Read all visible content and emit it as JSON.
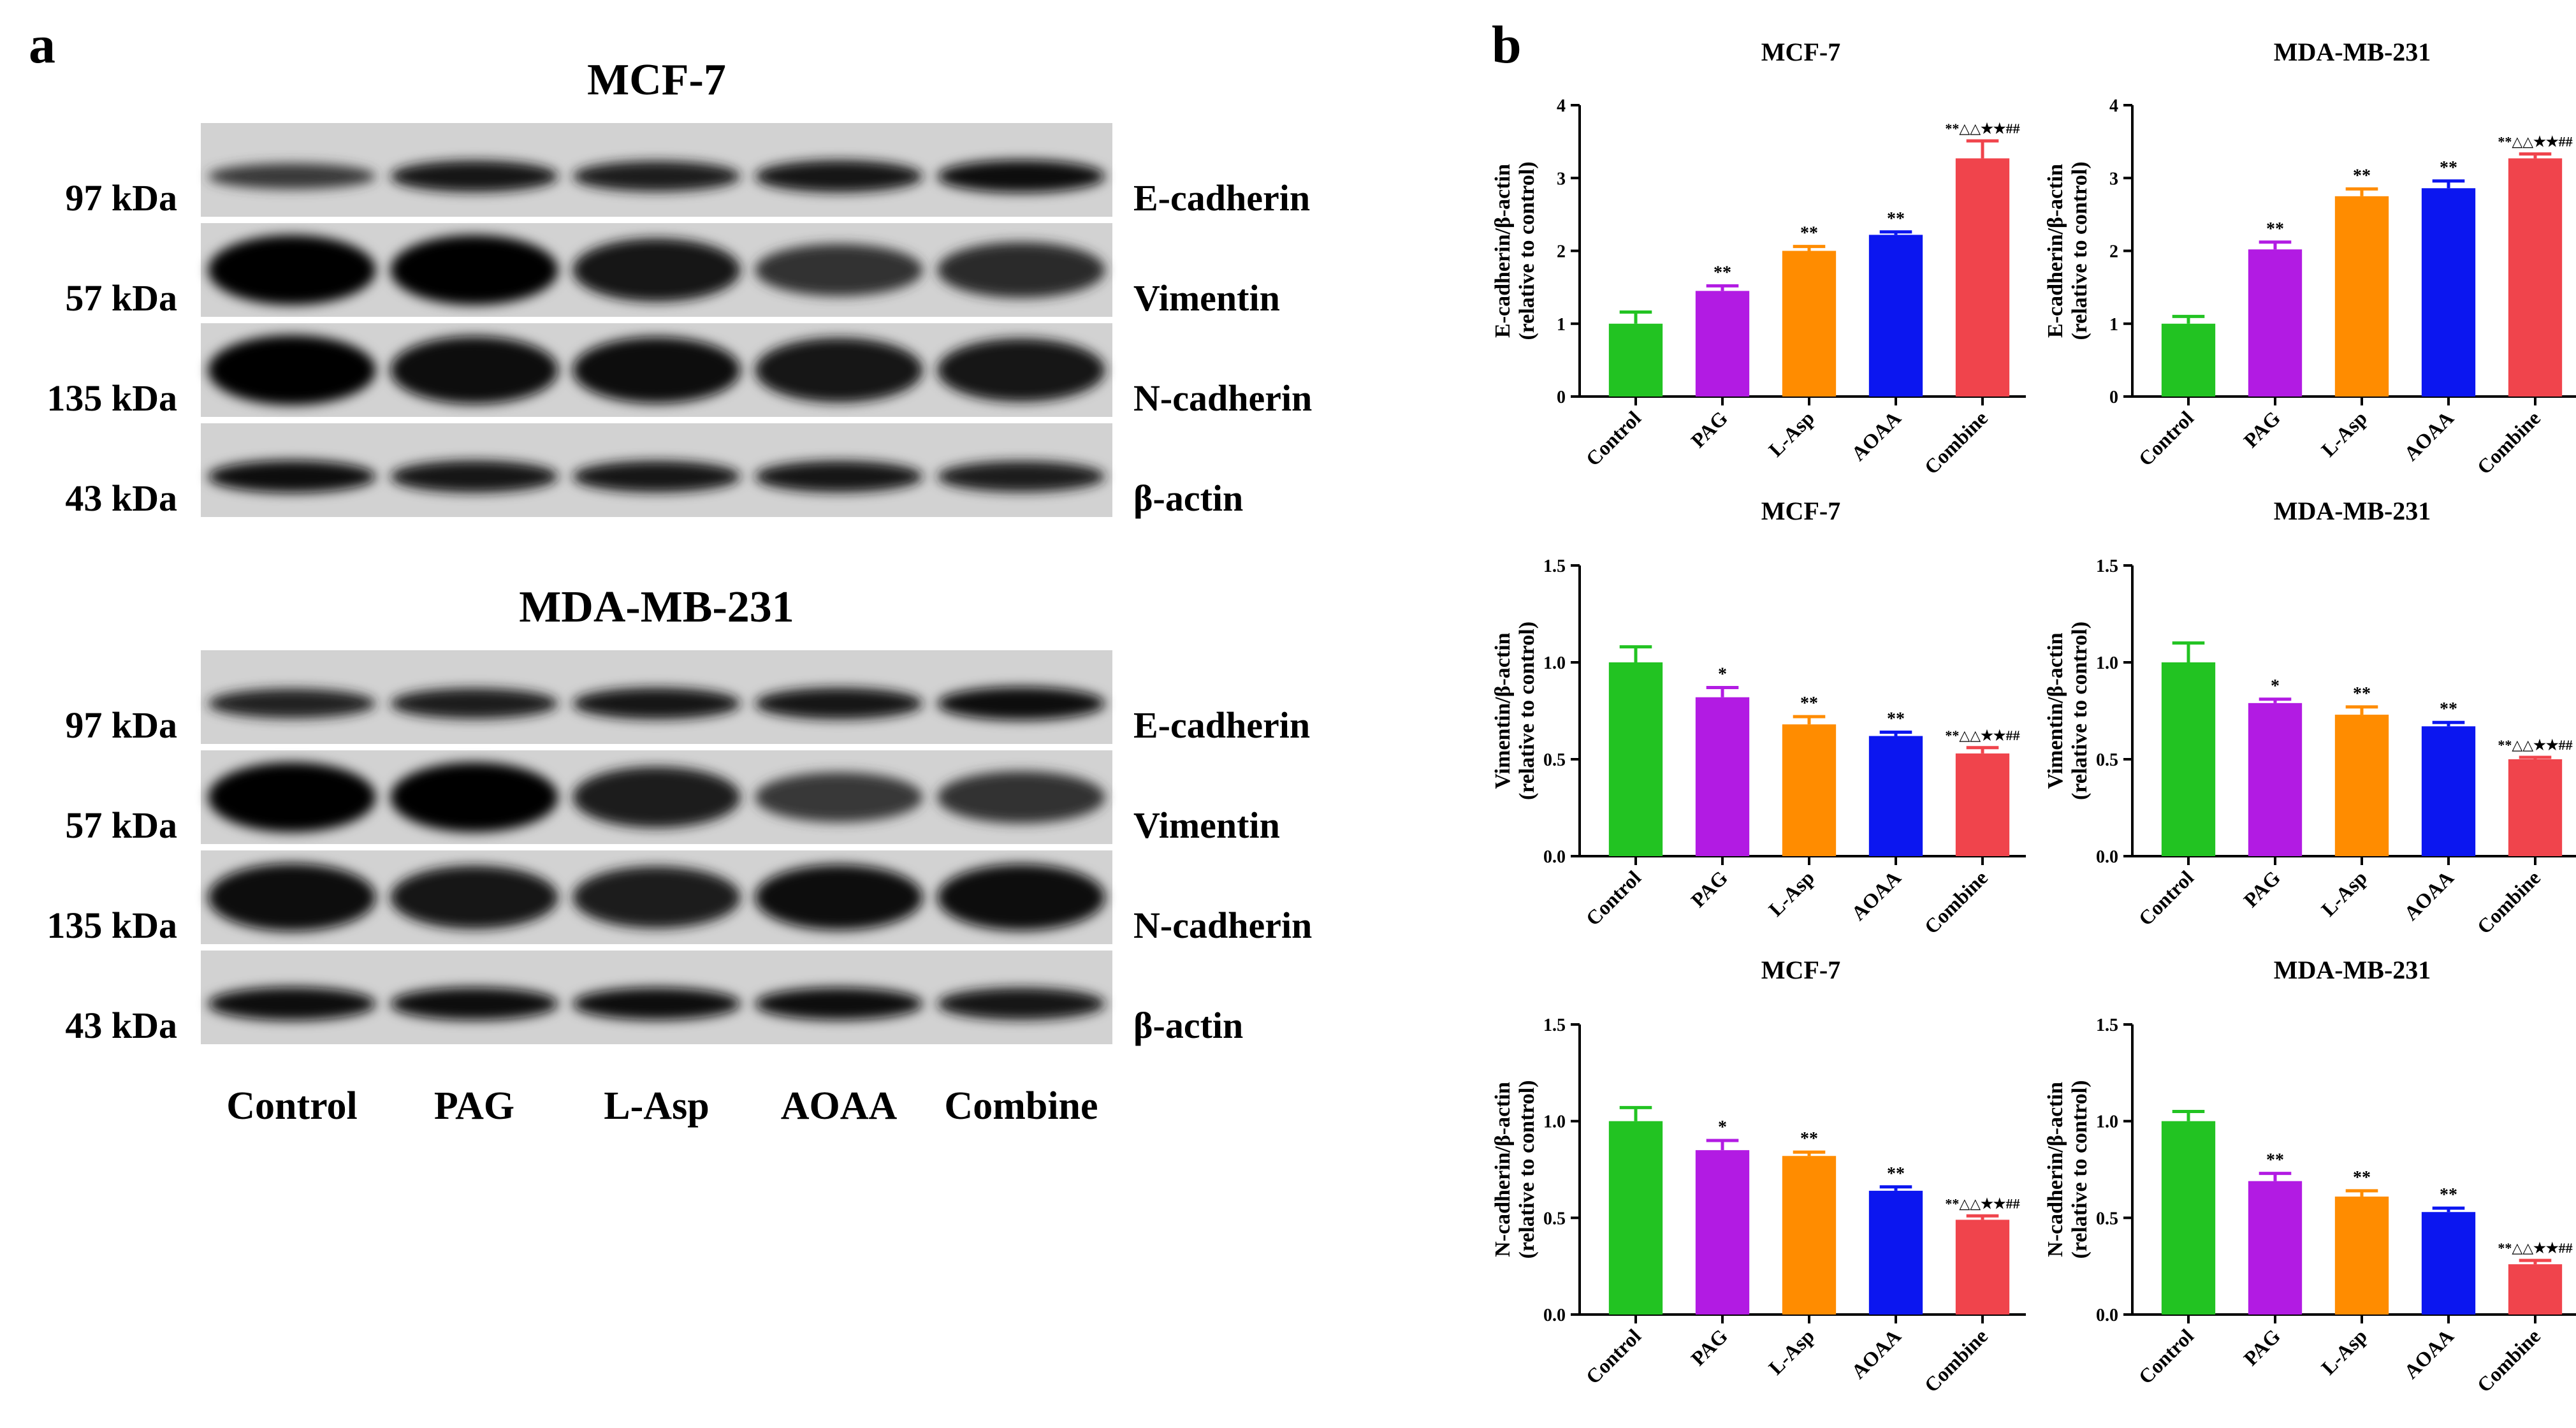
{
  "panel_a": {
    "label": "a",
    "blots": [
      {
        "title": "MCF-7",
        "rows": [
          {
            "marker": "E-cadherin",
            "kda": "97 kDa",
            "intensity": [
              0.55,
              0.85,
              0.8,
              0.88,
              0.92
            ]
          },
          {
            "marker": "Vimentin",
            "kda": "57 kDa",
            "intensity": [
              1.0,
              1.0,
              0.85,
              0.6,
              0.68
            ]
          },
          {
            "marker": "N-cadherin",
            "kda": "135 kDa",
            "intensity": [
              1.0,
              0.95,
              0.92,
              0.88,
              0.85
            ]
          },
          {
            "marker": "β-actin",
            "kda": "43 kDa",
            "intensity": [
              0.9,
              0.88,
              0.85,
              0.85,
              0.82
            ]
          }
        ]
      },
      {
        "title": "MDA-MB-231",
        "rows": [
          {
            "marker": "E-cadherin",
            "kda": "97 kDa",
            "intensity": [
              0.75,
              0.8,
              0.85,
              0.85,
              0.95
            ]
          },
          {
            "marker": "Vimentin",
            "kda": "57 kDa",
            "intensity": [
              1.0,
              1.0,
              0.8,
              0.55,
              0.6
            ]
          },
          {
            "marker": "N-cadherin",
            "kda": "135 kDa",
            "intensity": [
              0.95,
              0.85,
              0.82,
              0.9,
              0.92
            ]
          },
          {
            "marker": "β-actin",
            "kda": "43 kDa",
            "intensity": [
              0.95,
              0.92,
              0.9,
              0.9,
              0.88
            ]
          }
        ]
      }
    ],
    "lanes": [
      "Control",
      "PAG",
      "L-Asp",
      "AOAA",
      "Combine"
    ]
  },
  "panel_b": {
    "label": "b",
    "bar_colors": [
      "#22c322",
      "#b21be3",
      "#ff8c00",
      "#0b16f0",
      "#f0444c"
    ]
  },
  "chart_data": [
    {
      "type": "bar",
      "title": "MCF-7",
      "ylabel_line1": "E-cadherin/β-actin",
      "ylabel_line2": "(relative to control)",
      "categories": [
        "Control",
        "PAG",
        "L-Asp",
        "AOAA",
        "Combine"
      ],
      "values": [
        1.0,
        1.45,
        2.0,
        2.22,
        3.27
      ],
      "errors": [
        0.16,
        0.07,
        0.06,
        0.04,
        0.24
      ],
      "significance": [
        "",
        "**",
        "**",
        "**",
        "**△△★★##"
      ],
      "ylim": [
        0,
        4
      ],
      "yticks": [
        "0",
        "1",
        "2",
        "3",
        "4"
      ]
    },
    {
      "type": "bar",
      "title": "MDA-MB-231",
      "ylabel_line1": "E-cadherin/β-actin",
      "ylabel_line2": "(relative to control)",
      "categories": [
        "Control",
        "PAG",
        "L-Asp",
        "AOAA",
        "Combine"
      ],
      "values": [
        1.0,
        2.02,
        2.75,
        2.86,
        3.27
      ],
      "errors": [
        0.1,
        0.1,
        0.1,
        0.1,
        0.06
      ],
      "significance": [
        "",
        "**",
        "**",
        "**",
        "**△△★★##"
      ],
      "ylim": [
        0,
        4
      ],
      "yticks": [
        "0",
        "1",
        "2",
        "3",
        "4"
      ]
    },
    {
      "type": "bar",
      "title": "MCF-7",
      "ylabel_line1": "Vimentin/β-actin",
      "ylabel_line2": "(relative to control)",
      "categories": [
        "Control",
        "PAG",
        "L-Asp",
        "AOAA",
        "Combine"
      ],
      "values": [
        1.0,
        0.82,
        0.68,
        0.62,
        0.53
      ],
      "errors": [
        0.08,
        0.05,
        0.04,
        0.02,
        0.03
      ],
      "significance": [
        "",
        "*",
        "**",
        "**",
        "**△△★★##"
      ],
      "ylim": [
        0,
        1.5
      ],
      "yticks": [
        "0.0",
        "0.5",
        "1.0",
        "1.5"
      ]
    },
    {
      "type": "bar",
      "title": "MDA-MB-231",
      "ylabel_line1": "Vimentin/β-actin",
      "ylabel_line2": "(relative to control)",
      "categories": [
        "Control",
        "PAG",
        "L-Asp",
        "AOAA",
        "Combine"
      ],
      "values": [
        1.0,
        0.79,
        0.73,
        0.67,
        0.5
      ],
      "errors": [
        0.1,
        0.02,
        0.04,
        0.02,
        0.01
      ],
      "significance": [
        "",
        "*",
        "**",
        "**",
        "**△△★★##"
      ],
      "ylim": [
        0,
        1.5
      ],
      "yticks": [
        "0.0",
        "0.5",
        "1.0",
        "1.5"
      ]
    },
    {
      "type": "bar",
      "title": "MCF-7",
      "ylabel_line1": "N-cadherin/β-actin",
      "ylabel_line2": "(relative to control)",
      "categories": [
        "Control",
        "PAG",
        "L-Asp",
        "AOAA",
        "Combine"
      ],
      "values": [
        1.0,
        0.85,
        0.82,
        0.64,
        0.49
      ],
      "errors": [
        0.07,
        0.05,
        0.02,
        0.02,
        0.02
      ],
      "significance": [
        "",
        "*",
        "**",
        "**",
        "**△△★★##"
      ],
      "ylim": [
        0,
        1.5
      ],
      "yticks": [
        "0.0",
        "0.5",
        "1.0",
        "1.5"
      ]
    },
    {
      "type": "bar",
      "title": "MDA-MB-231",
      "ylabel_line1": "N-cadherin/β-actin",
      "ylabel_line2": "(relative to control)",
      "categories": [
        "Control",
        "PAG",
        "L-Asp",
        "AOAA",
        "Combine"
      ],
      "values": [
        1.0,
        0.69,
        0.61,
        0.53,
        0.26
      ],
      "errors": [
        0.05,
        0.04,
        0.03,
        0.02,
        0.02
      ],
      "significance": [
        "",
        "**",
        "**",
        "**",
        "**△△★★##"
      ],
      "ylim": [
        0,
        1.5
      ],
      "yticks": [
        "0.0",
        "0.5",
        "1.0",
        "1.5"
      ]
    }
  ]
}
